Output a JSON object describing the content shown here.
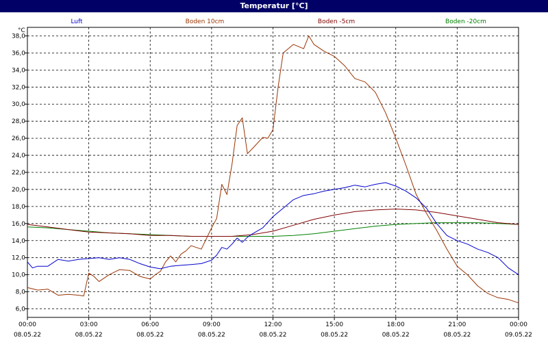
{
  "window": {
    "title": "Temperatur [°C]"
  },
  "chart_data": {
    "type": "line",
    "title": "Temperatur [°C]",
    "ylabel": "°C",
    "xlabel": "",
    "ylim": [
      5.0,
      39.0
    ],
    "xlim": [
      0,
      24
    ],
    "grid": true,
    "legend": "top",
    "y_ticks": [
      "38,0",
      "36,0",
      "34,0",
      "32,0",
      "30,0",
      "28,0",
      "26,0",
      "24,0",
      "22,0",
      "20,0",
      "18,0",
      "16,0",
      "14,0",
      "12,0",
      "10,0",
      "8,0",
      "6,0"
    ],
    "y_tick_values": [
      38,
      36,
      34,
      32,
      30,
      28,
      26,
      24,
      22,
      20,
      18,
      16,
      14,
      12,
      10,
      8,
      6
    ],
    "x_ticks": [
      {
        "time": "00:00",
        "date": "08.05.22"
      },
      {
        "time": "03:00",
        "date": "08.05.22"
      },
      {
        "time": "06:00",
        "date": "08.05.22"
      },
      {
        "time": "09:00",
        "date": "08.05.22"
      },
      {
        "time": "12:00",
        "date": "08.05.22"
      },
      {
        "time": "15:00",
        "date": "08.05.22"
      },
      {
        "time": "18:00",
        "date": "08.05.22"
      },
      {
        "time": "21:00",
        "date": "08.05.22"
      },
      {
        "time": "00:00",
        "date": "09.05.22"
      }
    ],
    "x_tick_values": [
      0,
      3,
      6,
      9,
      12,
      15,
      18,
      21,
      24
    ],
    "series": [
      {
        "name": "Luft",
        "color": "#0000cc",
        "x": [
          0,
          0.25,
          0.5,
          1,
          1.5,
          2,
          2.5,
          3,
          3.5,
          4,
          4.5,
          5,
          5.5,
          6,
          6.5,
          7,
          7.5,
          8,
          8.5,
          9,
          9.25,
          9.5,
          9.75,
          10,
          10.25,
          10.5,
          10.75,
          11,
          11.5,
          12,
          12.5,
          13,
          13.5,
          14,
          14.5,
          15,
          15.5,
          16,
          16.5,
          17,
          17.5,
          18,
          18.5,
          19,
          19.5,
          20,
          20.5,
          21,
          21.5,
          22,
          22.5,
          23,
          23.5,
          24
        ],
        "y": [
          11.5,
          10.8,
          11.0,
          11.0,
          11.8,
          11.6,
          11.8,
          11.9,
          12.0,
          11.8,
          12.0,
          11.8,
          11.3,
          10.9,
          10.7,
          11.0,
          11.1,
          11.2,
          11.3,
          11.7,
          12.3,
          13.2,
          13.0,
          13.6,
          14.3,
          13.8,
          14.4,
          14.8,
          15.5,
          16.8,
          17.8,
          18.8,
          19.3,
          19.5,
          19.8,
          20.0,
          20.2,
          20.5,
          20.3,
          20.6,
          20.8,
          20.4,
          19.8,
          19.0,
          17.8,
          16.0,
          14.6,
          14.0,
          13.6,
          13.0,
          12.6,
          12.0,
          10.8,
          10.0
        ]
      },
      {
        "name": "Boden 10cm",
        "color": "#993300",
        "x": [
          0,
          0.5,
          1,
          1.5,
          2,
          2.5,
          2.75,
          3,
          3.25,
          3.5,
          4,
          4.5,
          5,
          5.5,
          6,
          6.25,
          6.5,
          6.75,
          7,
          7.25,
          7.5,
          7.75,
          8,
          8.5,
          9,
          9.25,
          9.5,
          9.75,
          10,
          10.25,
          10.5,
          10.75,
          11,
          11.5,
          11.75,
          12,
          12.25,
          12.5,
          13,
          13.5,
          13.75,
          14,
          14.5,
          15,
          15.5,
          16,
          16.5,
          17,
          17.5,
          18,
          18.5,
          19,
          19.5,
          20,
          20.5,
          21,
          21.5,
          22,
          22.5,
          23,
          23.5,
          24
        ],
        "y": [
          8.5,
          8.2,
          8.3,
          7.6,
          7.7,
          7.6,
          7.5,
          10.2,
          9.8,
          9.2,
          10.0,
          10.6,
          10.5,
          9.8,
          9.5,
          10.0,
          10.4,
          11.5,
          12.2,
          11.5,
          12.4,
          12.8,
          13.4,
          13.0,
          15.5,
          16.6,
          20.6,
          19.4,
          23.0,
          27.5,
          28.4,
          24.2,
          24.8,
          26.1,
          26.0,
          27.0,
          32.0,
          36.0,
          37.0,
          36.5,
          38.0,
          37.0,
          36.2,
          35.6,
          34.5,
          33.0,
          32.6,
          31.4,
          29.0,
          26.0,
          22.8,
          19.4,
          17.2,
          15.2,
          13.0,
          11.0,
          10.0,
          8.7,
          7.8,
          7.3,
          7.1,
          6.7
        ]
      },
      {
        "name": "Boden -5cm",
        "color": "#800000",
        "x": [
          0,
          1,
          2,
          3,
          4,
          5,
          6,
          7,
          8,
          9,
          10,
          11,
          12,
          13,
          14,
          15,
          16,
          17,
          18,
          19,
          20,
          21,
          22,
          23,
          24
        ],
        "y": [
          15.9,
          15.6,
          15.3,
          15.0,
          14.9,
          14.8,
          14.6,
          14.6,
          14.5,
          14.5,
          14.5,
          14.7,
          15.1,
          15.8,
          16.5,
          17.0,
          17.4,
          17.6,
          17.7,
          17.6,
          17.3,
          16.9,
          16.5,
          16.1,
          15.9
        ]
      },
      {
        "name": "Boden -20cm",
        "color": "#008000",
        "x": [
          0,
          1,
          2,
          3,
          4,
          5,
          6,
          7,
          8,
          9,
          10,
          11,
          12,
          13,
          14,
          15,
          16,
          17,
          18,
          19,
          20,
          21,
          22,
          23,
          24
        ],
        "y": [
          15.6,
          15.5,
          15.3,
          15.1,
          14.9,
          14.8,
          14.7,
          14.6,
          14.5,
          14.5,
          14.5,
          14.5,
          14.5,
          14.6,
          14.8,
          15.1,
          15.4,
          15.7,
          15.9,
          16.0,
          16.1,
          16.1,
          16.1,
          16.0,
          15.9
        ]
      }
    ]
  }
}
